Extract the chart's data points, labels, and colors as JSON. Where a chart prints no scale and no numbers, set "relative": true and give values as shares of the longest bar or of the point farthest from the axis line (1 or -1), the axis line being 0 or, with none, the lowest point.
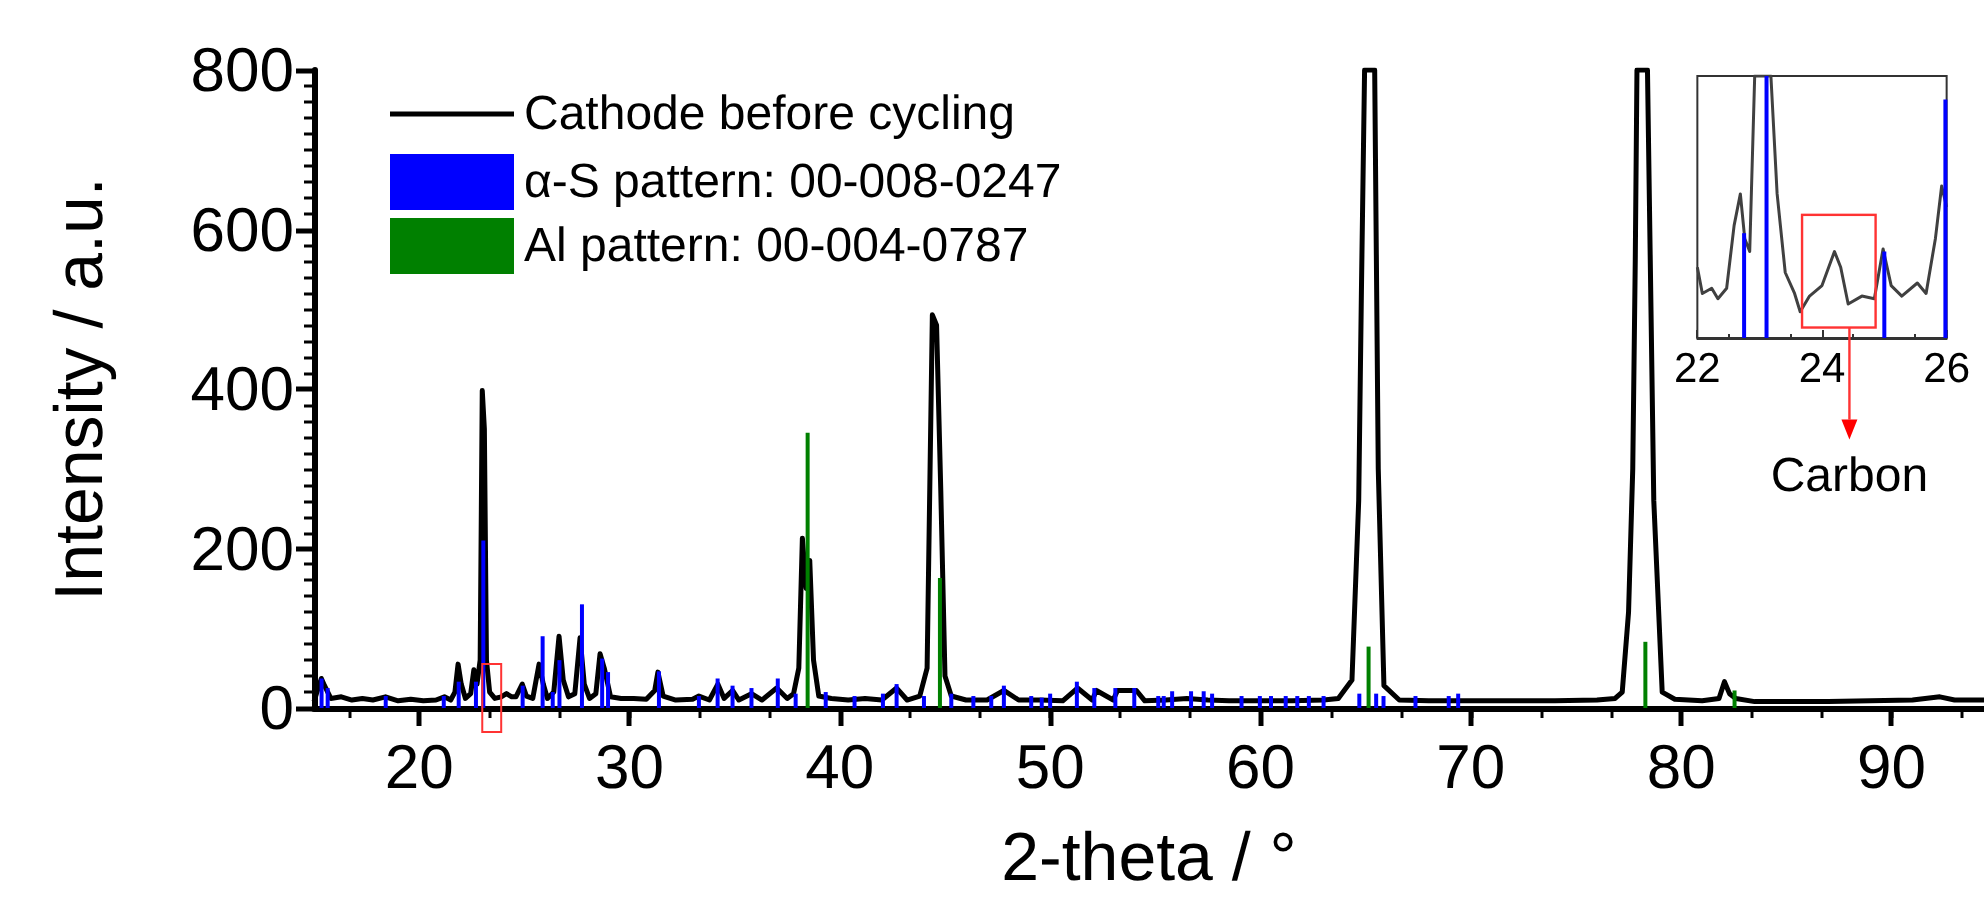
{
  "chart_data": [
    {
      "type": "line",
      "xlabel": "2-theta / °",
      "ylabel": "Intensity / a.u.",
      "xlim": [
        15,
        94.4
      ],
      "xticks": [
        20,
        30,
        40,
        50,
        60,
        70,
        80,
        90
      ],
      "ylim": [
        0,
        800
      ],
      "yticks": [
        0,
        200,
        400,
        600,
        800
      ],
      "grid": false,
      "legend": "top left",
      "marker": "none",
      "series": [
        {
          "name": "Cathode before cycling",
          "color": "#000000",
          "x": [
            15.0,
            15.2,
            15.35,
            15.5,
            15.8,
            16.3,
            16.8,
            17.3,
            17.8,
            18.4,
            19.0,
            19.6,
            20.2,
            20.8,
            21.2,
            21.5,
            21.7,
            21.85,
            22.0,
            22.2,
            22.45,
            22.6,
            22.75,
            22.9,
            23.0,
            23.1,
            23.2,
            23.35,
            23.6,
            23.9,
            24.15,
            24.4,
            24.6,
            24.9,
            25.1,
            25.4,
            25.7,
            25.9,
            26.1,
            26.4,
            26.65,
            26.85,
            27.1,
            27.4,
            27.65,
            27.85,
            28.1,
            28.4,
            28.6,
            28.8,
            29.1,
            29.6,
            30.2,
            30.8,
            31.2,
            31.35,
            31.6,
            32.2,
            33.0,
            33.3,
            33.8,
            34.2,
            34.5,
            34.9,
            35.2,
            35.8,
            36.3,
            37.0,
            37.5,
            37.8,
            38.05,
            38.22,
            38.4,
            38.57,
            38.75,
            39.0,
            39.6,
            40.4,
            41.2,
            42.0,
            42.7,
            43.2,
            43.8,
            44.15,
            44.4,
            44.6,
            44.8,
            45.0,
            45.3,
            46.0,
            47.0,
            47.8,
            48.5,
            49.5,
            50.6,
            51.3,
            52.0,
            52.2,
            53.0,
            53.2,
            54.1,
            54.5,
            55.5,
            56.5,
            57.5,
            58.5,
            60.0,
            61.5,
            63.0,
            63.7,
            64.35,
            64.67,
            64.8,
            64.95,
            65.43,
            65.6,
            65.87,
            66.6,
            68.0,
            70.0,
            72.0,
            74.0,
            76.0,
            76.86,
            77.2,
            77.5,
            77.7,
            77.82,
            77.9,
            78.4,
            78.7,
            79.1,
            79.7,
            81.0,
            81.8,
            82.06,
            82.3,
            82.6,
            83.5,
            85.0,
            87.0,
            89.0,
            91.0,
            92.3,
            93.0,
            94.4
          ],
          "values": [
            8,
            25,
            37,
            28,
            12,
            14,
            10,
            12,
            10,
            14,
            9,
            11,
            9,
            10,
            14,
            10,
            20,
            55,
            30,
            12,
            18,
            48,
            30,
            60,
            398,
            350,
            60,
            20,
            12,
            14,
            18,
            14,
            14,
            30,
            15,
            12,
            55,
            30,
            12,
            20,
            90,
            35,
            14,
            18,
            88,
            30,
            12,
            18,
            68,
            50,
            14,
            12,
            12,
            11,
            22,
            45,
            15,
            10,
            11,
            15,
            10,
            30,
            12,
            22,
            10,
            18,
            10,
            25,
            12,
            18,
            50,
            213,
            150,
            185,
            60,
            15,
            12,
            10,
            12,
            10,
            25,
            10,
            15,
            50,
            493,
            480,
            273,
            40,
            15,
            10,
            10,
            22,
            10,
            10,
            9,
            25,
            10,
            22,
            10,
            22,
            22,
            9,
            10,
            12,
            10,
            9,
            9,
            9,
            10,
            12,
            35,
            260,
            524,
            800,
            800,
            300,
            28,
            10,
            9,
            9,
            9,
            9,
            10,
            12,
            20,
            120,
            300,
            562,
            800,
            800,
            260,
            20,
            11,
            9,
            12,
            33,
            18,
            12,
            8,
            8,
            8,
            9,
            10,
            14,
            10,
            10
          ]
        },
        {
          "name": "α-S pattern: 00-008-0247",
          "type": "bar",
          "color": "#0000ff",
          "x": [
            15.36,
            15.65,
            18.41,
            21.17,
            21.88,
            22.7,
            23.05,
            24.92,
            25.87,
            26.35,
            26.67,
            27.74,
            28.7,
            28.98,
            31.4,
            33.3,
            34.19,
            34.9,
            35.8,
            37.05,
            37.9,
            39.33,
            40.7,
            42.05,
            42.7,
            44.0,
            45.3,
            46.35,
            47.2,
            47.8,
            49.1,
            49.6,
            50.0,
            51.27,
            52.1,
            53.1,
            54.0,
            55.14,
            55.4,
            55.8,
            56.7,
            57.3,
            57.7,
            59.1,
            59.97,
            60.5,
            61.2,
            61.75,
            62.3,
            63.0,
            64.7,
            65.5,
            65.85,
            67.37,
            68.95,
            69.4
          ],
          "values": [
            37,
            25,
            15,
            15,
            33,
            33,
            210,
            28,
            90,
            20,
            60,
            130,
            62,
            45,
            46,
            15,
            37,
            28,
            25,
            37,
            18,
            20,
            15,
            18,
            30,
            15,
            18,
            15,
            15,
            28,
            15,
            13,
            18,
            33,
            25,
            25,
            25,
            15,
            15,
            21,
            21,
            21,
            18,
            15,
            15,
            15,
            15,
            15,
            15,
            15,
            18,
            18,
            15,
            15,
            15,
            18
          ]
        },
        {
          "name": "Al pattern: 00-004-0787",
          "type": "bar",
          "color": "#008000",
          "x": [
            38.47,
            44.76,
            65.14,
            78.3,
            82.54
          ],
          "values": [
            345,
            163,
            77,
            83,
            22
          ]
        }
      ]
    },
    {
      "type": "line",
      "relative": true,
      "xlim": [
        22,
        26
      ],
      "xticks": [
        22,
        24,
        26
      ],
      "marker": "none",
      "series": [
        {
          "color": "#404040",
          "x": [
            22.0,
            22.08,
            22.23,
            22.33,
            22.47,
            22.59,
            22.69,
            22.76,
            22.84,
            22.92,
            23.18,
            23.28,
            23.41,
            23.56,
            23.65,
            23.8,
            24.0,
            24.2,
            24.3,
            24.42,
            24.64,
            24.84,
            24.98,
            25.11,
            25.28,
            25.53,
            25.67,
            25.82,
            25.92,
            26.0
          ],
          "values": [
            0.27,
            0.17,
            0.19,
            0.15,
            0.19,
            0.43,
            0.55,
            0.38,
            0.33,
            1,
            1,
            0.55,
            0.25,
            0.17,
            0.1,
            0.16,
            0.2,
            0.33,
            0.27,
            0.13,
            0.16,
            0.15,
            0.34,
            0.2,
            0.16,
            0.21,
            0.17,
            0.38,
            0.58,
            0.5
          ]
        },
        {
          "type": "bar",
          "color": "#0000ff",
          "x": [
            22.75,
            23.11,
            25.0,
            25.98
          ],
          "values": [
            0.4,
            1,
            0.33,
            0.91
          ]
        }
      ],
      "annotations": [
        "Carbon"
      ]
    }
  ]
}
